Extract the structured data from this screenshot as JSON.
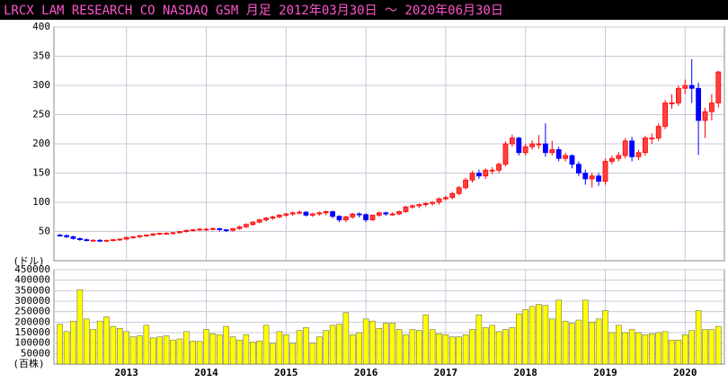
{
  "chart_data": {
    "type": "candlestick",
    "title": "LRCX LAM RESEARCH CO  NASDAQ GSM  月足  2012年03月30日 〜 2020年06月30日",
    "y_label": "(ドル)",
    "volume_label": "(百株)",
    "categories": [
      null,
      null,
      null,
      null,
      null,
      null,
      null,
      null,
      null,
      null,
      "2013",
      null,
      null,
      null,
      null,
      null,
      null,
      null,
      null,
      null,
      null,
      null,
      "2014",
      null,
      null,
      null,
      null,
      null,
      null,
      null,
      null,
      null,
      null,
      null,
      "2015",
      null,
      null,
      null,
      null,
      null,
      null,
      null,
      null,
      null,
      null,
      null,
      "2016",
      null,
      null,
      null,
      null,
      null,
      null,
      null,
      null,
      null,
      null,
      null,
      "2017",
      null,
      null,
      null,
      null,
      null,
      null,
      null,
      null,
      null,
      null,
      null,
      "2018",
      null,
      null,
      null,
      null,
      null,
      null,
      null,
      null,
      null,
      null,
      null,
      "2019",
      null,
      null,
      null,
      null,
      null,
      null,
      null,
      null,
      null,
      null,
      null,
      "2020",
      null,
      null,
      null,
      null,
      null
    ],
    "open": [
      44,
      43,
      41,
      38,
      36,
      35,
      35,
      34,
      35,
      36,
      37,
      40,
      41,
      43,
      44,
      46,
      47,
      47,
      48,
      50,
      52,
      53,
      54,
      54,
      55,
      53,
      52,
      55,
      58,
      62,
      66,
      70,
      73,
      75,
      78,
      80,
      82,
      83,
      78,
      80,
      82,
      84,
      76,
      70,
      75,
      80,
      79,
      70,
      78,
      82,
      80,
      80,
      84,
      92,
      94,
      96,
      98,
      100,
      106,
      108,
      115,
      125,
      138,
      150,
      145,
      155,
      155,
      165,
      200,
      210,
      185,
      195,
      200,
      200,
      185,
      190,
      175,
      180,
      165,
      150,
      140,
      145,
      136,
      170,
      175,
      180,
      205,
      178,
      185,
      210,
      210,
      230,
      270,
      270,
      295,
      300,
      295,
      240,
      255,
      270
    ],
    "high": [
      46,
      45,
      43,
      40,
      38,
      37,
      37,
      36,
      37,
      38,
      41,
      42,
      44,
      45,
      47,
      48,
      49,
      49,
      51,
      53,
      54,
      56,
      56,
      57,
      56,
      54,
      56,
      60,
      64,
      68,
      72,
      75,
      77,
      80,
      82,
      84,
      86,
      85,
      82,
      84,
      86,
      86,
      78,
      77,
      82,
      83,
      81,
      79,
      84,
      84,
      83,
      86,
      94,
      96,
      98,
      100,
      102,
      108,
      111,
      118,
      128,
      142,
      154,
      156,
      158,
      160,
      168,
      204,
      216,
      212,
      200,
      206,
      215,
      235,
      205,
      195,
      185,
      182,
      170,
      156,
      150,
      150,
      175,
      180,
      186,
      210,
      212,
      190,
      214,
      218,
      235,
      275,
      285,
      300,
      310,
      345,
      305,
      262,
      285,
      325
    ],
    "low": [
      41,
      39,
      36,
      34,
      33,
      33,
      32,
      32,
      33,
      34,
      35,
      38,
      39,
      41,
      42,
      44,
      45,
      45,
      46,
      48,
      50,
      51,
      51,
      52,
      50,
      49,
      50,
      53,
      56,
      60,
      64,
      67,
      70,
      73,
      75,
      77,
      79,
      76,
      75,
      77,
      78,
      72,
      66,
      66,
      72,
      74,
      66,
      68,
      75,
      77,
      77,
      78,
      82,
      89,
      90,
      92,
      94,
      96,
      103,
      105,
      112,
      122,
      134,
      140,
      140,
      148,
      150,
      162,
      195,
      180,
      180,
      190,
      192,
      178,
      180,
      170,
      170,
      158,
      145,
      130,
      125,
      128,
      130,
      165,
      170,
      175,
      170,
      172,
      180,
      200,
      205,
      225,
      260,
      265,
      285,
      270,
      181,
      210,
      240,
      262
    ],
    "close": [
      43,
      41,
      38,
      36,
      35,
      35,
      34,
      35,
      36,
      37,
      40,
      41,
      43,
      44,
      46,
      47,
      47,
      48,
      50,
      52,
      53,
      54,
      54,
      55,
      53,
      52,
      55,
      58,
      62,
      66,
      70,
      73,
      75,
      78,
      80,
      82,
      83,
      78,
      80,
      82,
      84,
      76,
      70,
      75,
      80,
      79,
      70,
      78,
      82,
      80,
      80,
      84,
      92,
      94,
      96,
      98,
      100,
      106,
      108,
      115,
      125,
      138,
      150,
      145,
      155,
      155,
      165,
      200,
      210,
      185,
      195,
      200,
      200,
      185,
      190,
      175,
      180,
      165,
      150,
      140,
      145,
      136,
      170,
      175,
      180,
      205,
      178,
      185,
      210,
      210,
      230,
      270,
      270,
      295,
      300,
      295,
      240,
      255,
      270,
      323
    ],
    "volume": [
      190000,
      155000,
      205000,
      355000,
      215000,
      165000,
      205000,
      225000,
      180000,
      170000,
      155000,
      130000,
      135000,
      185000,
      125000,
      130000,
      135000,
      115000,
      120000,
      155000,
      110000,
      108000,
      165000,
      145000,
      140000,
      180000,
      130000,
      115000,
      140000,
      105000,
      110000,
      185000,
      100000,
      155000,
      140000,
      100000,
      160000,
      175000,
      100000,
      130000,
      160000,
      185000,
      190000,
      245000,
      140000,
      150000,
      215000,
      205000,
      170000,
      195000,
      195000,
      165000,
      140000,
      165000,
      160000,
      235000,
      165000,
      145000,
      140000,
      130000,
      130000,
      140000,
      165000,
      235000,
      175000,
      185000,
      155000,
      165000,
      175000,
      240000,
      260000,
      275000,
      285000,
      280000,
      215000,
      305000,
      205000,
      195000,
      210000,
      305000,
      200000,
      215000,
      255000,
      150000,
      185000,
      150000,
      165000,
      150000,
      140000,
      145000,
      150000,
      155000,
      115000,
      115000,
      140000,
      160000,
      255000,
      165000,
      165000,
      180000
    ],
    "up_color": "#ff0000",
    "down_color": "#0000ff",
    "volume_color": "#ffff00",
    "ylim": [
      0,
      400
    ],
    "yticks": [
      50,
      100,
      150,
      200,
      250,
      300,
      350,
      400
    ],
    "volume_ylim": [
      0,
      450000
    ],
    "volume_yticks": [
      50000,
      100000,
      150000,
      200000,
      250000,
      300000,
      350000,
      400000,
      450000
    ],
    "grid": true
  }
}
